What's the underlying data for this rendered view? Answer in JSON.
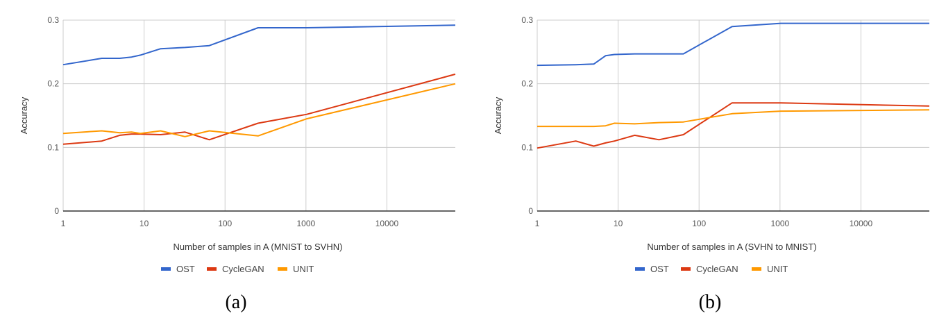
{
  "colors": {
    "OST": "#3366cc",
    "CycleGAN": "#dc3912",
    "UNIT": "#ff9900"
  },
  "chart_data": [
    {
      "type": "line",
      "caption": "(a)",
      "xlabel": "Number of samples in A (MNIST to SVHN)",
      "ylabel": "Accuracy",
      "xscale": "log",
      "xlim": [
        1,
        70000
      ],
      "ylim": [
        0,
        0.3
      ],
      "xticks": [
        "1",
        "10",
        "100",
        "1000",
        "10000"
      ],
      "yticks": [
        "0",
        "0.1",
        "0.2",
        "0.3"
      ],
      "grid": true,
      "legend": "bottom",
      "x": [
        1,
        3,
        5,
        7,
        9,
        16,
        32,
        64,
        256,
        1024,
        70000
      ],
      "series": [
        {
          "name": "OST",
          "values": [
            0.23,
            0.24,
            0.24,
            0.242,
            0.245,
            0.255,
            0.257,
            0.26,
            0.288,
            0.288,
            0.292
          ]
        },
        {
          "name": "CycleGAN",
          "values": [
            0.105,
            0.11,
            0.119,
            0.121,
            0.121,
            0.12,
            0.124,
            0.112,
            0.138,
            0.152,
            0.215
          ]
        },
        {
          "name": "UNIT",
          "values": [
            0.122,
            0.126,
            0.123,
            0.124,
            0.122,
            0.126,
            0.117,
            0.126,
            0.118,
            0.145,
            0.2
          ]
        }
      ]
    },
    {
      "type": "line",
      "caption": "(b)",
      "xlabel": "Number of samples in A (SVHN to MNIST)",
      "ylabel": "Accuracy",
      "xscale": "log",
      "xlim": [
        1,
        70000
      ],
      "ylim": [
        0,
        0.3
      ],
      "xticks": [
        "1",
        "10",
        "100",
        "1000",
        "10000"
      ],
      "yticks": [
        "0",
        "0.1",
        "0.2",
        "0.3"
      ],
      "grid": true,
      "legend": "bottom",
      "x": [
        1,
        3,
        5,
        7,
        9,
        16,
        32,
        64,
        256,
        1024,
        70000
      ],
      "series": [
        {
          "name": "OST",
          "values": [
            0.229,
            0.23,
            0.231,
            0.244,
            0.246,
            0.247,
            0.247,
            0.247,
            0.29,
            0.295,
            0.295
          ]
        },
        {
          "name": "CycleGAN",
          "values": [
            0.099,
            0.11,
            0.102,
            0.107,
            0.11,
            0.119,
            0.112,
            0.12,
            0.17,
            0.17,
            0.165
          ]
        },
        {
          "name": "UNIT",
          "values": [
            0.133,
            0.133,
            0.133,
            0.134,
            0.138,
            0.137,
            0.139,
            0.14,
            0.153,
            0.157,
            0.159
          ]
        }
      ]
    }
  ]
}
